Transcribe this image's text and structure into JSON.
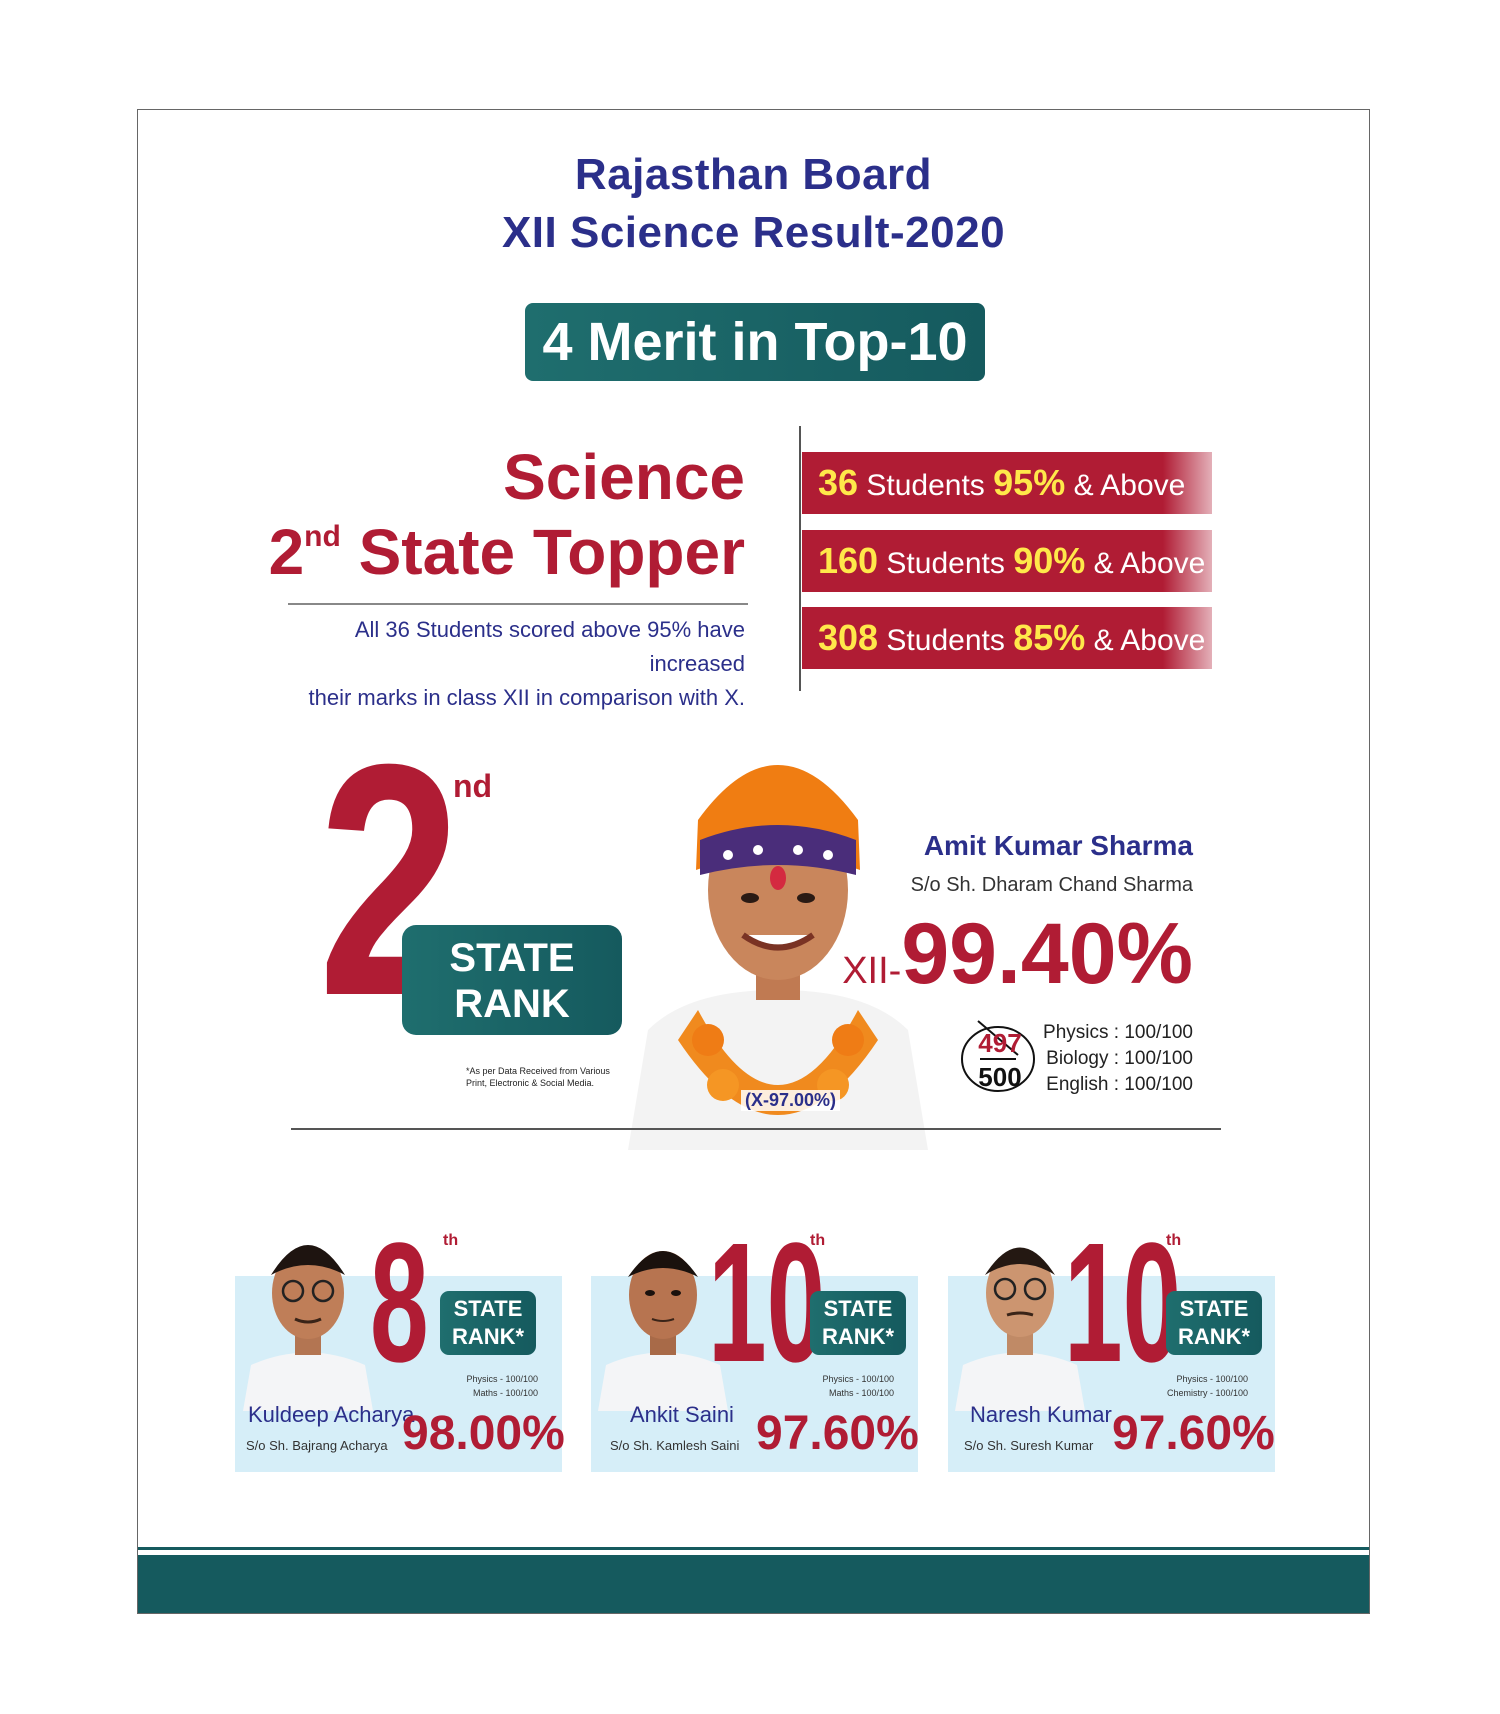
{
  "header": {
    "line1": "Rajasthan Board",
    "line2": "XII Science Result-2020",
    "merit": "4 Merit in Top-10"
  },
  "topper_block": {
    "line1": "Science",
    "line2_ordinal": "2",
    "line2_suffix": "nd",
    "line2_rest": "State Topper",
    "note_line1": "All 36 Students scored above 95% have increased",
    "note_line2": "their marks in class XII in comparison with X."
  },
  "stats": [
    {
      "count": "36",
      "students": "Students",
      "pct": "95%",
      "tail": "& Above"
    },
    {
      "count": "160",
      "students": "Students",
      "pct": "90%",
      "tail": "& Above"
    },
    {
      "count": "308",
      "students": "Students",
      "pct": "85%",
      "tail": "& Above"
    }
  ],
  "main_topper": {
    "rank_num": "2",
    "rank_suffix": "nd",
    "rank_line1": "STATE",
    "rank_line2": "RANK",
    "disclaimer": "*As per Data Received from Various Print, Electronic & Social Media.",
    "name": "Amit Kumar Sharma",
    "father": "S/o Sh. Dharam Chand Sharma",
    "pct_label": "XII-",
    "pct": "99.40%",
    "x_mark": "(X-97.00%)",
    "score_obtained": "497",
    "score_total": "500",
    "subjects": [
      "Physics : 100/100",
      "Biology : 100/100",
      "English : 100/100"
    ]
  },
  "cards": [
    {
      "rank": "8",
      "suffix": "th",
      "sr1": "STATE",
      "sr2": "RANK*",
      "sub1": "Physics - 100/100",
      "sub2": "Maths - 100/100",
      "name": "Kuldeep Acharya",
      "father": "S/o Sh. Bajrang Acharya",
      "pct": "98.00%"
    },
    {
      "rank": "10",
      "suffix": "th",
      "sr1": "STATE",
      "sr2": "RANK*",
      "sub1": "Physics - 100/100",
      "sub2": "Maths - 100/100",
      "name": "Ankit Saini",
      "father": "S/o Sh. Kamlesh Saini",
      "pct": "97.60%"
    },
    {
      "rank": "10",
      "suffix": "th",
      "sr1": "STATE",
      "sr2": "RANK*",
      "sub1": "Physics - 100/100",
      "sub2": "Chemistry - 100/100",
      "name": "Naresh Kumar",
      "father": "S/o Sh. Suresh Kumar",
      "pct": "97.60%"
    }
  ],
  "colors": {
    "navy": "#2b2f8a",
    "crimson": "#b01c34",
    "teal": "#155a5e",
    "yellow": "#ffe84a",
    "card_bg": "#d6eef8"
  }
}
